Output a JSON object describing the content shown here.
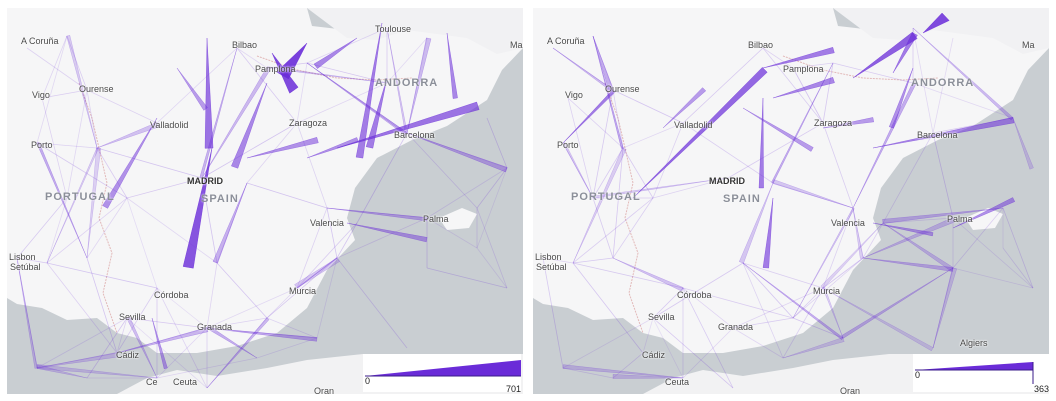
{
  "colors": {
    "water": "#c9ced2",
    "land": "#f6f6f7",
    "border": "#e2b9b9",
    "flow": "#6a2cd8"
  },
  "places": {
    "coruna": "A Coruña",
    "bilbao": "Bilbao",
    "toulouse": "Toulouse",
    "marseille_partial": "Ma",
    "vigo": "Vigo",
    "ourense": "Ourense",
    "pamplona": "Pamplona",
    "andorra": "ANDORRA",
    "valladolid": "Valladolid",
    "zaragoza": "Zaragoza",
    "barcelona": "Barcelona",
    "porto": "Porto",
    "madrid": "MADRID",
    "portugal": "PORTUGAL",
    "spain": "SPAIN",
    "valencia": "Valencia",
    "palma": "Palma",
    "lisbon": "Lisbon",
    "setubal": "Setúbal",
    "cordoba": "Córdoba",
    "murcia": "Murcia",
    "sevilla": "Sevilla",
    "granada": "Granada",
    "cadiz": "Cádiz",
    "algiers": "Algiers",
    "ceuta": "Ceuta",
    "ceuta_prefix": "Ce",
    "oran": "Oran"
  },
  "panels": [
    {
      "legend": {
        "min": "0",
        "max": "701"
      },
      "top_flows_note": "strong flows along Pamplona/Bilbao region, Madrid-south corridor, Barcelona coast"
    },
    {
      "legend": {
        "min": "0",
        "max": "363"
      },
      "top_flows_note": "strong flows Valladolid-Portugal diagonal, north-east to Toulouse, Barcelona coast"
    }
  ]
}
